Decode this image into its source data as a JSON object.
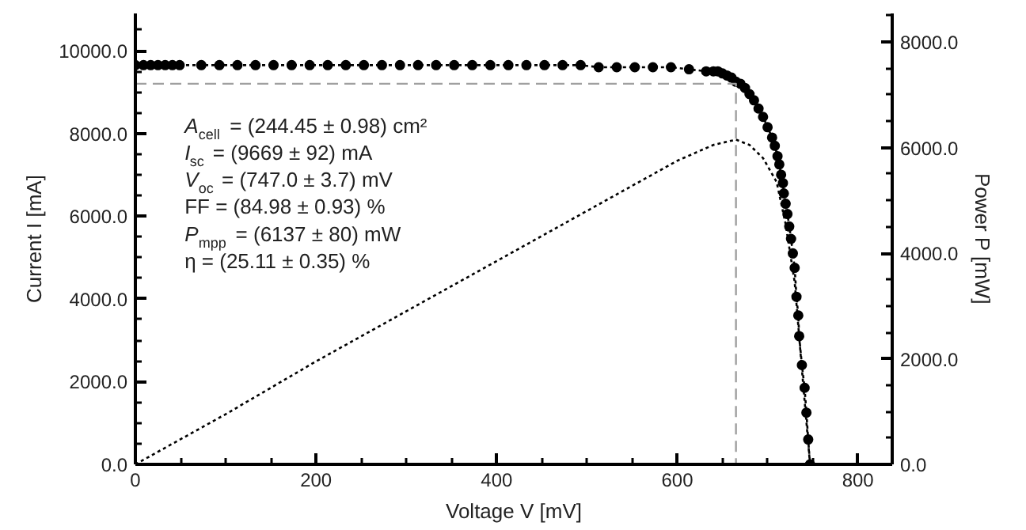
{
  "chart_data": {
    "type": "line",
    "xlabel": "Voltage V [mV]",
    "ylabel": "Current I [mA]",
    "y2label": "Power P [mW]",
    "xlim": [
      0,
      838
    ],
    "ylim": [
      0,
      10900
    ],
    "y2lim": [
      0,
      8540
    ],
    "xticks": [
      0,
      {
        "value": 50,
        "label": null
      },
      {
        "value": 100,
        "label": null
      },
      {
        "value": 150,
        "label": null
      },
      200,
      {
        "value": 250,
        "label": null
      },
      {
        "value": 300,
        "label": null
      },
      {
        "value": 350,
        "label": null
      },
      400,
      {
        "value": 450,
        "label": null
      },
      {
        "value": 500,
        "label": null
      },
      {
        "value": 550,
        "label": null
      },
      600,
      {
        "value": 650,
        "label": null
      },
      {
        "value": 700,
        "label": null
      },
      {
        "value": 750,
        "label": null
      },
      800
    ],
    "yticks": [
      {
        "value": 0,
        "label": "0.0"
      },
      {
        "value": 500,
        "label": null
      },
      {
        "value": 1000,
        "label": null
      },
      {
        "value": 1500,
        "label": null
      },
      {
        "value": 2000,
        "label": "2000.0"
      },
      {
        "value": 2500,
        "label": null
      },
      {
        "value": 3000,
        "label": null
      },
      {
        "value": 3500,
        "label": null
      },
      {
        "value": 4000,
        "label": "4000.0"
      },
      {
        "value": 4500,
        "label": null
      },
      {
        "value": 5000,
        "label": null
      },
      {
        "value": 5500,
        "label": null
      },
      {
        "value": 6000,
        "label": "6000.0"
      },
      {
        "value": 6500,
        "label": null
      },
      {
        "value": 7000,
        "label": null
      },
      {
        "value": 7500,
        "label": null
      },
      {
        "value": 8000,
        "label": "8000.0"
      },
      {
        "value": 8500,
        "label": null
      },
      {
        "value": 9000,
        "label": null
      },
      {
        "value": 9500,
        "label": null
      },
      {
        "value": 10000,
        "label": "10000.0"
      },
      {
        "value": 10500,
        "label": null
      }
    ],
    "y2ticks": [
      {
        "value": 0,
        "label": "0.0"
      },
      {
        "value": 500,
        "label": null
      },
      {
        "value": 1000,
        "label": null
      },
      {
        "value": 1500,
        "label": null
      },
      {
        "value": 2000,
        "label": "2000.0"
      },
      {
        "value": 2500,
        "label": null
      },
      {
        "value": 3000,
        "label": null
      },
      {
        "value": 3500,
        "label": null
      },
      {
        "value": 4000,
        "label": "4000.0"
      },
      {
        "value": 4500,
        "label": null
      },
      {
        "value": 5000,
        "label": null
      },
      {
        "value": 5500,
        "label": null
      },
      {
        "value": 6000,
        "label": "6000.0"
      },
      {
        "value": 6500,
        "label": null
      },
      {
        "value": 7000,
        "label": null
      },
      {
        "value": 7500,
        "label": null
      },
      {
        "value": 8000,
        "label": "8000.0"
      },
      {
        "value": 8500,
        "label": null
      }
    ],
    "grid": false,
    "annotations": [
      "A$_{cell}$ = (244.45 ± 0.98) cm²",
      "I$_{sc}$ = (9669 ± 92) mA",
      "V$_{oc}$ = (747.0 ± 3.7) mV",
      "FF = (84.98 ± 0.93) %",
      "P$_{mpp}$ = (6137 ± 80) mW",
      "η = (25.11 ± 0.35) %"
    ],
    "series": [
      {
        "color": "#000000",
        "marker": "circle",
        "line_style": "dotted",
        "x": [
          0,
          9,
          17,
          25,
          33,
          41,
          49,
          73,
          93,
          113,
          133,
          153,
          173,
          193,
          213,
          233,
          253,
          273,
          293,
          313,
          333,
          353,
          373,
          393,
          413,
          433,
          453,
          473,
          493,
          513,
          533,
          553,
          573,
          593,
          613,
          632,
          640,
          645,
          650,
          655,
          660,
          665,
          670,
          675,
          680,
          685,
          690,
          695,
          700,
          705,
          708,
          711,
          713,
          715,
          717,
          718,
          720,
          722,
          724,
          726,
          728,
          730,
          732,
          734,
          735,
          738,
          741,
          743,
          745,
          747
        ],
        "values": [
          9650,
          9650,
          9650,
          9650,
          9650,
          9650,
          9650,
          9650,
          9650,
          9650,
          9650,
          9650,
          9650,
          9650,
          9650,
          9650,
          9650,
          9650,
          9650,
          9650,
          9650,
          9650,
          9650,
          9650,
          9650,
          9650,
          9650,
          9650,
          9650,
          9600,
          9600,
          9600,
          9600,
          9600,
          9550,
          9500,
          9500,
          9500,
          9450,
          9400,
          9350,
          9250,
          9200,
          9100,
          8950,
          8800,
          8600,
          8400,
          8150,
          7900,
          7700,
          7450,
          7250,
          7000,
          6800,
          6550,
          6300,
          6050,
          5750,
          5450,
          5100,
          4750,
          4050,
          3600,
          3100,
          2400,
          1850,
          1250,
          600,
          0
        ]
      },
      {
        "axis": "y2",
        "color": "#000000",
        "marker": "none",
        "line_style": "dotted",
        "x": [
          0,
          100,
          200,
          300,
          400,
          500,
          600,
          640,
          665,
          680,
          695,
          710,
          720,
          730,
          738,
          747
        ],
        "values": [
          0,
          950,
          1950,
          2900,
          3850,
          4800,
          5750,
          6050,
          6150,
          6050,
          5800,
          5350,
          4550,
          3450,
          1800,
          0
        ]
      },
      {
        "color": "#a0a0a0",
        "marker": "none",
        "line_style": "dashed",
        "x": [
          0,
          665,
          665
        ],
        "values": [
          9200,
          9200,
          0
        ]
      }
    ]
  }
}
